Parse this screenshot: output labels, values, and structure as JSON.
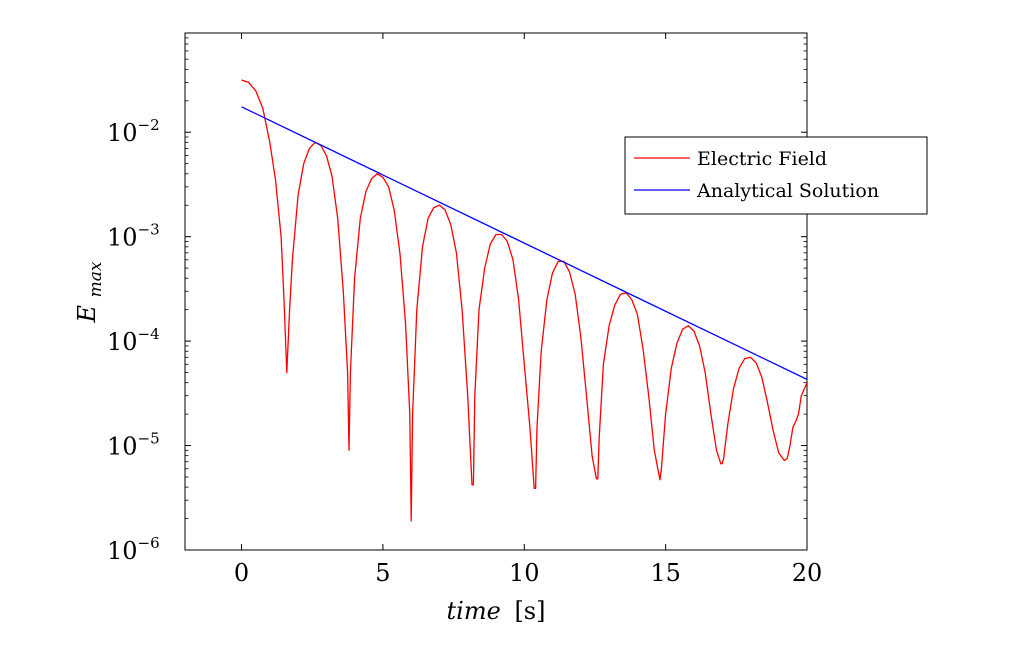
{
  "chart_data": {
    "type": "line",
    "xlabel_var": "time",
    "xlabel_unit": "[s]",
    "ylabel_main": "E",
    "ylabel_sub": "max",
    "xlim": [
      -2,
      20
    ],
    "ylim_log10": [
      -6,
      -1.05
    ],
    "yscale": "log",
    "x_ticks": [
      0,
      5,
      10,
      15,
      20
    ],
    "x_tick_labels": [
      "0",
      "5",
      "10",
      "15",
      "20"
    ],
    "y_ticks_log10": [
      -6,
      -5,
      -4,
      -3,
      -2
    ],
    "y_tick_base": "10",
    "y_tick_exponents": [
      "−6",
      "−5",
      "−4",
      "−3",
      "−2"
    ],
    "grid": false,
    "legend_position": "right",
    "series": [
      {
        "name": "Electric Field",
        "color": "#ff0000",
        "x": [
          0.0,
          0.25,
          0.5,
          0.75,
          1.0,
          1.2,
          1.4,
          1.5,
          1.6,
          1.7,
          1.8,
          2.0,
          2.2,
          2.4,
          2.6,
          2.8,
          3.0,
          3.2,
          3.4,
          3.6,
          3.75,
          3.8,
          3.85,
          4.0,
          4.2,
          4.4,
          4.6,
          4.8,
          5.0,
          5.2,
          5.4,
          5.6,
          5.8,
          5.95,
          6.0,
          6.05,
          6.2,
          6.4,
          6.6,
          6.8,
          7.0,
          7.2,
          7.4,
          7.6,
          7.8,
          8.0,
          8.15,
          8.2,
          8.25,
          8.4,
          8.6,
          8.8,
          9.0,
          9.2,
          9.4,
          9.6,
          9.8,
          10.0,
          10.2,
          10.35,
          10.4,
          10.45,
          10.6,
          10.8,
          11.0,
          11.2,
          11.4,
          11.6,
          11.8,
          12.0,
          12.2,
          12.4,
          12.55,
          12.6,
          12.65,
          12.8,
          13.0,
          13.2,
          13.4,
          13.6,
          13.8,
          14.0,
          14.2,
          14.4,
          14.6,
          14.75,
          14.8,
          14.85,
          15.0,
          15.2,
          15.4,
          15.6,
          15.8,
          16.0,
          16.2,
          16.4,
          16.6,
          16.8,
          16.95,
          17.0,
          17.05,
          17.2,
          17.4,
          17.6,
          17.8,
          18.0,
          18.2,
          18.4,
          18.6,
          18.8,
          19.0,
          19.2,
          19.3,
          19.4,
          19.5,
          19.6,
          19.7,
          19.8,
          20.0
        ],
        "y": [
          0.0316,
          0.03,
          0.025,
          0.017,
          0.008,
          0.0035,
          0.001,
          0.00025,
          5e-05,
          0.0002,
          0.0006,
          0.0025,
          0.005,
          0.007,
          0.008,
          0.0075,
          0.006,
          0.0038,
          0.0015,
          0.0003,
          5e-05,
          9e-06,
          5e-05,
          0.0004,
          0.0015,
          0.0027,
          0.0036,
          0.004,
          0.0037,
          0.003,
          0.0018,
          0.0007,
          0.00015,
          2e-05,
          1.9e-06,
          2e-05,
          0.0002,
          0.0008,
          0.0015,
          0.0019,
          0.002,
          0.0018,
          0.0013,
          0.0007,
          0.0002,
          3e-05,
          4.2e-06,
          4.2e-06,
          3e-05,
          0.0002,
          0.0005,
          0.00085,
          0.00105,
          0.00105,
          0.0009,
          0.0006,
          0.00025,
          6e-05,
          1.5e-05,
          3.9e-06,
          3.9e-06,
          1.5e-05,
          8e-05,
          0.00025,
          0.00045,
          0.00058,
          0.00058,
          0.00046,
          0.00028,
          0.00011,
          3e-05,
          8e-06,
          4.8e-06,
          4.8e-06,
          1.2e-05,
          6e-05,
          0.00014,
          0.00022,
          0.00028,
          0.00029,
          0.00025,
          0.00018,
          8.5e-05,
          3e-05,
          9e-06,
          5.5e-06,
          4.7e-06,
          6e-06,
          2e-05,
          5.5e-05,
          9.5e-05,
          0.00013,
          0.00014,
          0.000125,
          9e-05,
          5e-05,
          2e-05,
          9e-06,
          6.7e-06,
          6.7e-06,
          7.5e-06,
          1.6e-05,
          3.5e-05,
          5.5e-05,
          6.8e-05,
          7e-05,
          6.2e-05,
          4.5e-05,
          2.6e-05,
          1.4e-05,
          8.5e-06,
          7.2e-06,
          7.5e-06,
          1e-05,
          1.5e-05,
          1.7e-05,
          2e-05,
          3e-05,
          4e-05
        ]
      },
      {
        "name": "Analytical Solution",
        "color": "#0000ff",
        "x": [
          0,
          20
        ],
        "y": [
          0.0175,
          4.3e-05
        ]
      }
    ]
  }
}
